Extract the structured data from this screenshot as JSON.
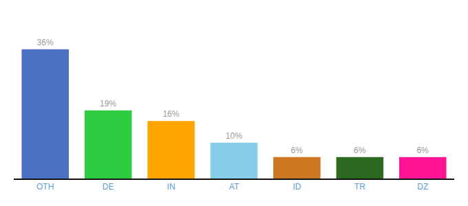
{
  "chart_data": {
    "type": "bar",
    "categories": [
      "OTH",
      "DE",
      "IN",
      "AT",
      "ID",
      "TR",
      "DZ"
    ],
    "values": [
      36,
      19,
      16,
      10,
      6,
      6,
      6
    ],
    "value_labels": [
      "36%",
      "19%",
      "16%",
      "10%",
      "6%",
      "6%",
      "6%"
    ],
    "colors": [
      "#4C72C4",
      "#2ECC40",
      "#FFA500",
      "#87CEEB",
      "#CC7722",
      "#2D6A1F",
      "#FF1493"
    ],
    "ylim": [
      0,
      44
    ],
    "grid": false,
    "data_labels": true,
    "tick_labels": "x"
  }
}
